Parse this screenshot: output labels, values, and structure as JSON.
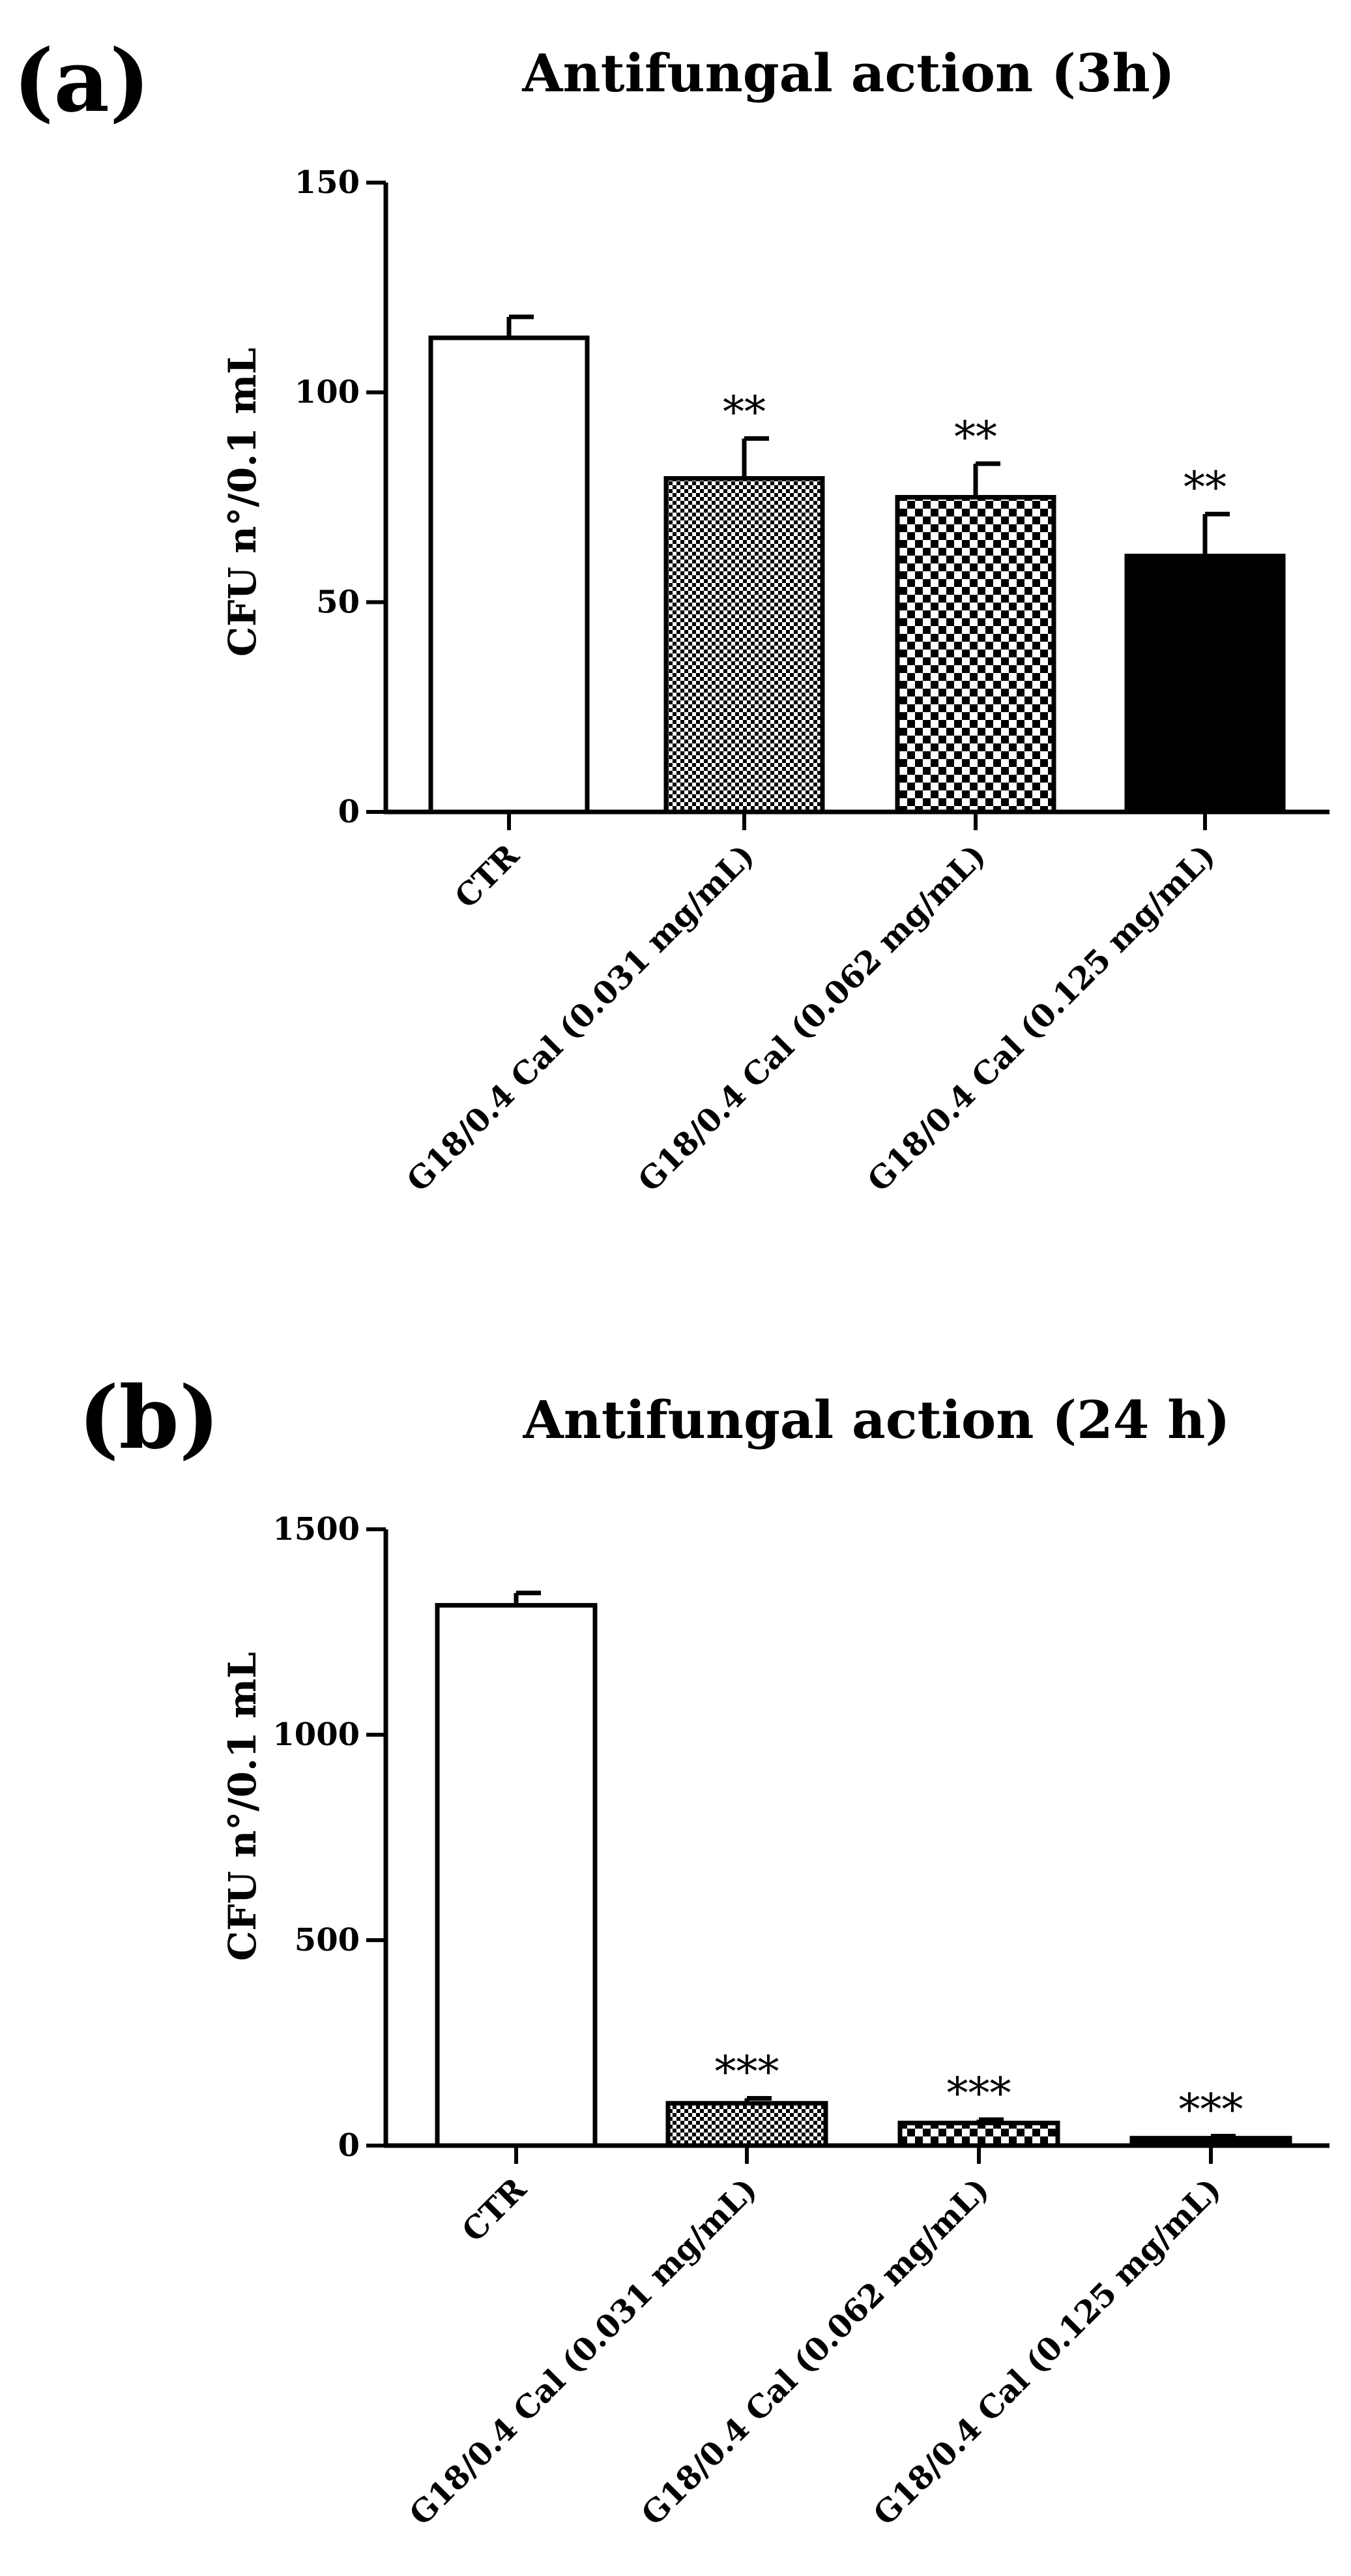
{
  "colors": {
    "ink": "#000000",
    "background": "#ffffff"
  },
  "chart_data": [
    {
      "type": "bar",
      "panel_label": "(a)",
      "title": "Antifungal action (3h)",
      "xlabel": "",
      "ylabel": "CFU n°/0.1 mL",
      "ylim": [
        0,
        150
      ],
      "yticks": [
        0,
        50,
        100,
        150
      ],
      "ytick_labels": [
        "0",
        "50",
        "100",
        "150"
      ],
      "grid": false,
      "categories": [
        "CTR",
        "G18/0.4 Cal (0.031 mg/mL)",
        "G18/0.4 Cal (0.062 mg/mL)",
        "G18/0.4 Cal (0.125 mg/mL)"
      ],
      "values": [
        113,
        79.5,
        75,
        61
      ],
      "errors": [
        5,
        9.5,
        8,
        10
      ],
      "significance": [
        "",
        "**",
        "**",
        "**"
      ],
      "fill_patterns": [
        "white",
        "fine-checker",
        "coarse-checker",
        "black"
      ]
    },
    {
      "type": "bar",
      "panel_label": "(b)",
      "title": "Antifungal action (24 h)",
      "xlabel": "",
      "ylabel": "CFU n°/0.1 mL",
      "ylim": [
        0,
        1500
      ],
      "yticks": [
        0,
        500,
        1000,
        1500
      ],
      "ytick_labels": [
        "0",
        "500",
        "1000",
        "1500"
      ],
      "grid": false,
      "categories": [
        "CTR",
        "G18/0.4 Cal (0.031 mg/mL)",
        "G18/0.4 Cal (0.062 mg/mL)",
        "G18/0.4 Cal (0.125 mg/mL)"
      ],
      "values": [
        1315,
        103,
        55,
        18
      ],
      "errors": [
        30,
        12,
        8,
        5
      ],
      "significance": [
        "",
        "***",
        "***",
        "***"
      ],
      "fill_patterns": [
        "white",
        "fine-checker",
        "coarse-checker",
        "black"
      ]
    }
  ]
}
